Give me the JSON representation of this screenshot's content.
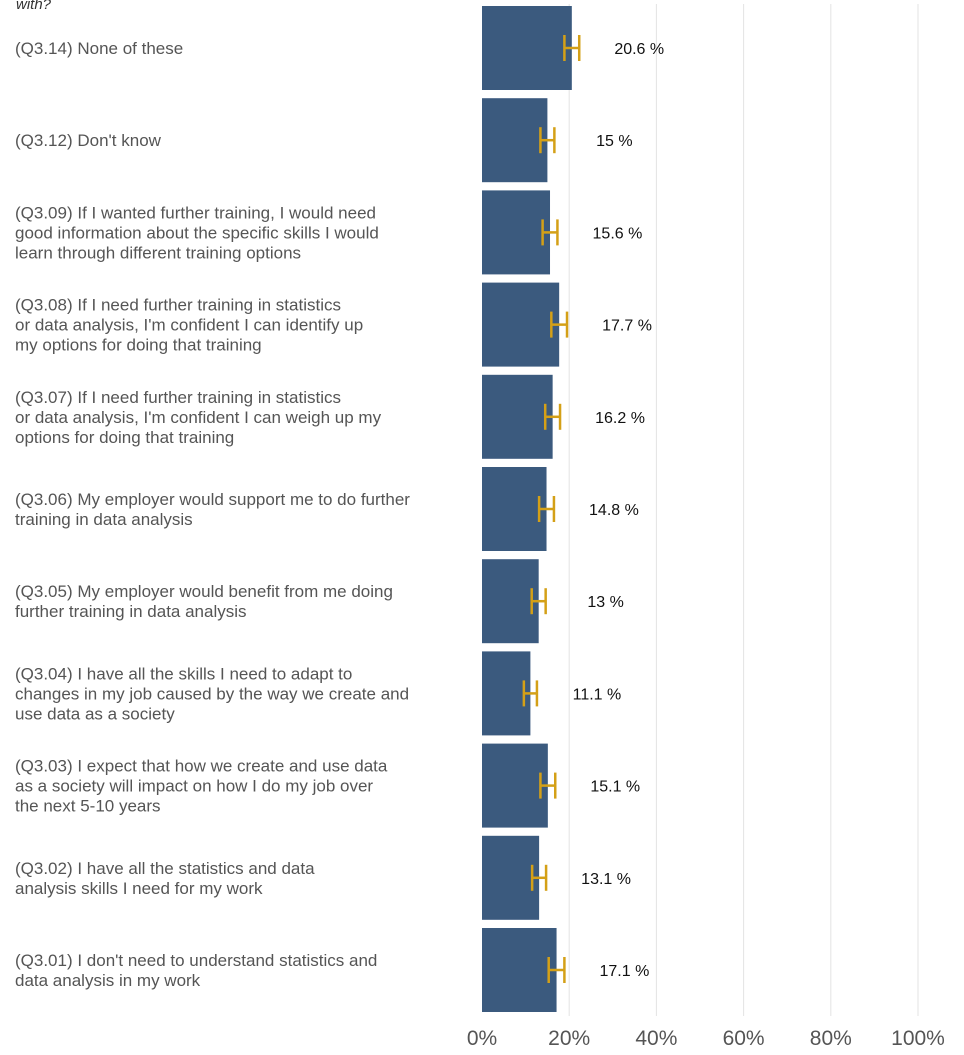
{
  "chart_data": {
    "type": "bar",
    "orientation": "horizontal",
    "title_fragment": "with?",
    "categories": [
      "(Q3.14) None of these",
      "(Q3.12) Don't know",
      "(Q3.09) If I wanted further training, I would need good information about the specific skills I would learn through different training options",
      "(Q3.08) If I need further training in statistics or data analysis, I'm confident I can identify up my options for doing that training",
      "(Q3.07) If I need further training in statistics or data analysis, I'm confident I can weigh up my options for doing that training",
      "(Q3.06) My employer would support me to do further training in data analysis",
      "(Q3.05) My employer would benefit from me doing further training in data analysis",
      "(Q3.04) I have all the skills I need to adapt to changes in my job caused by the way we create and use data as a society",
      "(Q3.03) I expect that how we create and use data as a society will impact on how I do my job over the next 5-10 years",
      "(Q3.02) I have all the statistics and data analysis skills I need for my work",
      "(Q3.01) I don't need to understand statistics and data analysis in my work"
    ],
    "category_lines": [
      [
        "(Q3.14) None of these"
      ],
      [
        "(Q3.12) Don't know"
      ],
      [
        "(Q3.09) If I wanted further training, I would need",
        "good information about the specific skills I would",
        "learn through different training options"
      ],
      [
        "(Q3.08) If I need further training in statistics",
        "or data analysis, I'm confident I can identify up",
        "my options for doing that training"
      ],
      [
        "(Q3.07) If I need further training in statistics",
        "or data analysis, I'm confident I can weigh up my",
        "options for doing that training"
      ],
      [
        "(Q3.06) My employer would support me to do further",
        "training in data analysis"
      ],
      [
        "(Q3.05) My employer would benefit from me doing",
        "further training in data analysis"
      ],
      [
        "(Q3.04) I have all the skills I need to adapt to",
        "changes in my job caused by the way we create and",
        "use data as a society"
      ],
      [
        "(Q3.03) I expect that how we create and use data",
        "as a society will impact on how I do my job over",
        "the next 5-10 years"
      ],
      [
        "(Q3.02) I have all the statistics and data",
        "analysis skills I need for my work"
      ],
      [
        "(Q3.01) I don't need to understand statistics and",
        "data analysis in my work"
      ]
    ],
    "values": [
      20.6,
      15,
      15.6,
      17.7,
      16.2,
      14.8,
      13,
      11.1,
      15.1,
      13.1,
      17.1
    ],
    "value_labels": [
      "20.6 %",
      "15 %",
      "15.6 %",
      "17.7 %",
      "16.2 %",
      "14.8 %",
      "13 %",
      "11.1 %",
      "15.1 %",
      "13.1 %",
      "17.1 %"
    ],
    "error_low": [
      18.9,
      13.4,
      13.9,
      15.9,
      14.5,
      13.1,
      11.4,
      9.6,
      13.4,
      11.5,
      15.3
    ],
    "error_high": [
      22.3,
      16.6,
      17.3,
      19.5,
      17.9,
      16.5,
      14.6,
      12.6,
      16.8,
      14.7,
      18.9
    ],
    "xlim": [
      0,
      100
    ],
    "x_ticks": [
      0,
      20,
      40,
      60,
      80,
      100
    ],
    "x_tick_labels": [
      "0%",
      "20%",
      "40%",
      "60%",
      "80%",
      "100%"
    ],
    "grid": true,
    "colors": {
      "bar": "#3b5a7e",
      "error_bar": "#d4a017",
      "grid": "#e3e3e3",
      "category_text": "#555555",
      "value_text": "#111111",
      "tick_text": "#555555"
    }
  }
}
